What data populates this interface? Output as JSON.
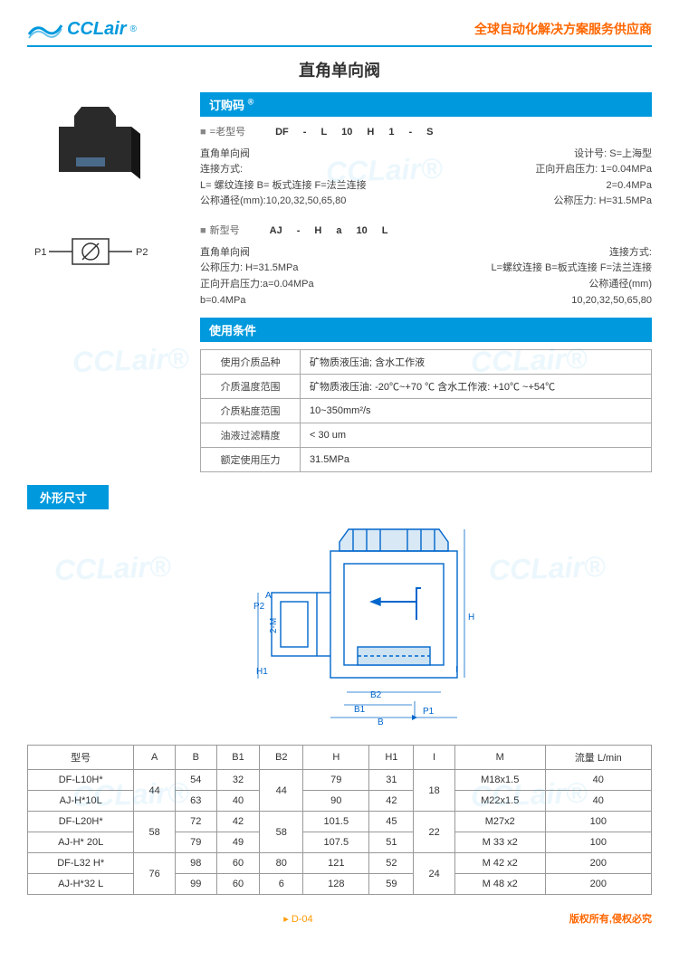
{
  "header": {
    "logo_text": "CCLair",
    "slogan": "全球自动化解决方案服务供应商"
  },
  "title": "直角单向阀",
  "bars": {
    "order": "订购码",
    "conditions": "使用条件",
    "dimensions": "外形尺寸"
  },
  "order": {
    "old": {
      "bullet": "■",
      "label": "=老型号",
      "parts": [
        "DF",
        "-",
        "L",
        "10",
        "H",
        "1",
        "-",
        "S"
      ],
      "left": [
        "直角单向阀",
        "连接方式:",
        "L= 螺纹连接  B= 板式连接  F=法兰连接",
        "公称通径(mm):10,20,32,50,65,80"
      ],
      "right": [
        "设计号: S=上海型",
        "正向开启压力: 1=0.04MPa",
        "2=0.4MPa",
        "公称压力: H=31.5MPa"
      ]
    },
    "new": {
      "bullet": "■",
      "label": "新型号",
      "parts": [
        "AJ",
        "-",
        "H",
        "a",
        "10",
        "L"
      ],
      "left": [
        "直角单向阀",
        "公称压力: H=31.5MPa",
        "正向开启压力:a=0.04MPa",
        "b=0.4MPa"
      ],
      "right": [
        "连接方式:",
        "L=螺纹连接  B=板式连接  F=法兰连接",
        "公称通径(mm)",
        "10,20,32,50,65,80"
      ]
    }
  },
  "conditions": [
    {
      "k": "使用介质品种",
      "v": "矿物质液压油; 含水工作液"
    },
    {
      "k": "介质温度范围",
      "v": "矿物质液压油: -20℃~+70 ℃   含水工作液: +10℃ ~+54℃"
    },
    {
      "k": "介质粘度范围",
      "v": "10~350mm²/s"
    },
    {
      "k": "油液过滤精度",
      "v": "< 30 um"
    },
    {
      "k": "额定使用压力",
      "v": "31.5MPa"
    }
  ],
  "dim": {
    "columns": [
      "型号",
      "A",
      "B",
      "B1",
      "B2",
      "H",
      "H1",
      "I",
      "M",
      "流量   L/min"
    ],
    "rows": [
      [
        "DF-L10H*",
        "44",
        "54",
        "32",
        "44",
        "79",
        "31",
        "18",
        "M18x1.5",
        "40"
      ],
      [
        "AJ-H*10L",
        "44",
        "63",
        "40",
        "44",
        "90",
        "42",
        "18",
        "M22x1.5",
        "40"
      ],
      [
        "DF-L20H*",
        "58",
        "72",
        "42",
        "58",
        "101.5",
        "45",
        "22",
        "M27x2",
        "100"
      ],
      [
        "AJ-H* 20L",
        "58",
        "79",
        "49",
        "58",
        "107.5",
        "51",
        "22",
        "M 33 x2",
        "100"
      ],
      [
        "DF-L32 H*",
        "76",
        "98",
        "60",
        "80",
        "121",
        "52",
        "24",
        "M 42 x2",
        "200"
      ],
      [
        "AJ-H*32 L",
        "76",
        "99",
        "60",
        "6",
        "128",
        "59",
        "24",
        "M 48 x2",
        "200"
      ]
    ],
    "rowspans": {
      "A": [
        2,
        2,
        2
      ],
      "B2": [
        2,
        2,
        1,
        1
      ],
      "I": [
        2,
        2,
        2
      ]
    }
  },
  "footer": {
    "page": "D-04",
    "copyright": "版权所有,侵权必究"
  },
  "colors": {
    "accent": "#0099dd",
    "orange": "#ff6600",
    "drawing": "#0066cc"
  }
}
